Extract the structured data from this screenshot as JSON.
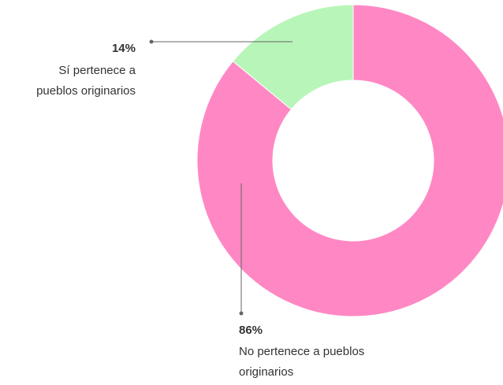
{
  "chart_data": {
    "type": "pie",
    "donut": true,
    "title": "",
    "categories": [
      "Sí pertenece a pueblos originarios",
      "No pertenece a pueblos originarios"
    ],
    "values": [
      14,
      86
    ],
    "unit": "%",
    "colors": [
      "#b8f5b9",
      "#ff88c4"
    ],
    "legend": "none",
    "labels": [
      {
        "pct": "14%",
        "lines": [
          "Sí pertenece a",
          "pueblos originarios"
        ]
      },
      {
        "pct": "86%",
        "lines": [
          "No pertenece a pueblos",
          "originarios"
        ]
      }
    ]
  }
}
